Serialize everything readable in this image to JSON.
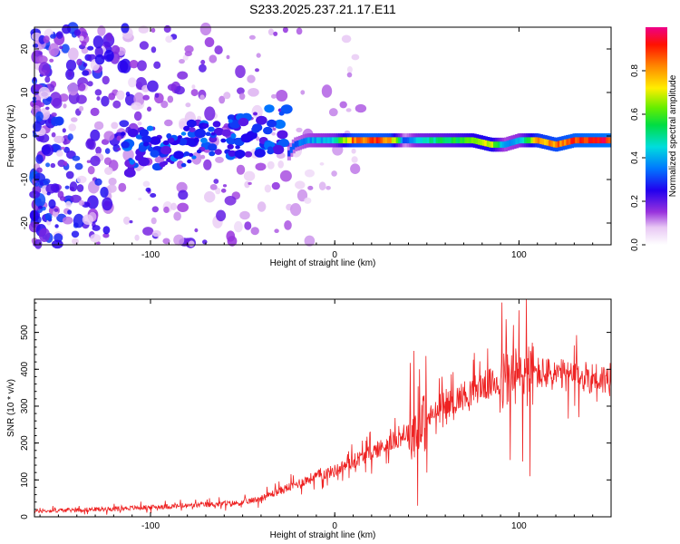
{
  "title": "S233.2025.237.21.17.E11",
  "chart_data": [
    {
      "type": "heatmap",
      "xlabel": "Height of straight line (km)",
      "ylabel": "Frequency (Hz)",
      "xlim": [
        -163,
        150
      ],
      "ylim": [
        -25,
        25
      ],
      "xticks": [
        -100,
        0,
        100
      ],
      "yticks": [
        -20,
        -10,
        0,
        10,
        20
      ],
      "colorbar": {
        "label": "Normalized spectral amplitude",
        "ticks": [
          0.0,
          0.2,
          0.4,
          0.6,
          0.8
        ],
        "range": [
          0,
          1
        ]
      },
      "ridge": [
        {
          "x": -110,
          "y": -6,
          "amp": 0.35
        },
        {
          "x": -100,
          "y": -3,
          "amp": 0.3
        },
        {
          "x": -90,
          "y": 0,
          "amp": 0.3
        },
        {
          "x": -75,
          "y": -1,
          "amp": 0.25
        },
        {
          "x": -55,
          "y": 0,
          "amp": 0.35
        },
        {
          "x": -35,
          "y": -3,
          "amp": 0.3
        },
        {
          "x": -28,
          "y": -6,
          "amp": 0.3
        },
        {
          "x": -22,
          "y": -2,
          "amp": 0.35
        },
        {
          "x": -15,
          "y": -1,
          "amp": 0.4
        },
        {
          "x": -5,
          "y": -1,
          "amp": 0.45
        },
        {
          "x": 0,
          "y": -1,
          "amp": 0.5
        },
        {
          "x": 10,
          "y": -1,
          "amp": 0.9
        },
        {
          "x": 20,
          "y": -1,
          "amp": 0.95
        },
        {
          "x": 30,
          "y": -1,
          "amp": 0.9
        },
        {
          "x": 38,
          "y": -1,
          "amp": 0.3
        },
        {
          "x": 45,
          "y": -1,
          "amp": 0.5
        },
        {
          "x": 55,
          "y": -1,
          "amp": 0.55
        },
        {
          "x": 65,
          "y": -1,
          "amp": 0.6
        },
        {
          "x": 75,
          "y": -1,
          "amp": 0.7
        },
        {
          "x": 85,
          "y": -2,
          "amp": 0.75
        },
        {
          "x": 92,
          "y": -2,
          "amp": 0.4
        },
        {
          "x": 100,
          "y": -1,
          "amp": 0.45
        },
        {
          "x": 110,
          "y": -1,
          "amp": 0.85
        },
        {
          "x": 120,
          "y": -2,
          "amp": 0.9
        },
        {
          "x": 130,
          "y": -1,
          "amp": 0.95
        },
        {
          "x": 140,
          "y": -1,
          "amp": 0.98
        },
        {
          "x": 150,
          "y": -1,
          "amp": 1.0
        }
      ]
    },
    {
      "type": "line",
      "xlabel": "Height of straight line (km)",
      "ylabel": "SNR (10 * v/v)",
      "xlim": [
        -163,
        150
      ],
      "ylim": [
        0,
        590
      ],
      "xticks": [
        -100,
        0,
        100
      ],
      "yticks": [
        0,
        100,
        200,
        300,
        400,
        500
      ],
      "series": [
        {
          "name": "SNR",
          "color": "#ee2222",
          "trend": [
            {
              "x": -163,
              "y": 15
            },
            {
              "x": -120,
              "y": 22
            },
            {
              "x": -80,
              "y": 30
            },
            {
              "x": -50,
              "y": 38
            },
            {
              "x": -40,
              "y": 50
            },
            {
              "x": -30,
              "y": 70
            },
            {
              "x": -20,
              "y": 90
            },
            {
              "x": -10,
              "y": 110
            },
            {
              "x": 0,
              "y": 125
            },
            {
              "x": 10,
              "y": 150
            },
            {
              "x": 20,
              "y": 175
            },
            {
              "x": 30,
              "y": 200
            },
            {
              "x": 40,
              "y": 230
            },
            {
              "x": 45,
              "y": 235
            },
            {
              "x": 50,
              "y": 265
            },
            {
              "x": 60,
              "y": 300
            },
            {
              "x": 70,
              "y": 330
            },
            {
              "x": 80,
              "y": 355
            },
            {
              "x": 90,
              "y": 365
            },
            {
              "x": 100,
              "y": 380
            },
            {
              "x": 110,
              "y": 390
            },
            {
              "x": 120,
              "y": 385
            },
            {
              "x": 130,
              "y": 378
            },
            {
              "x": 140,
              "y": 378
            },
            {
              "x": 150,
              "y": 370
            }
          ],
          "spikes": [
            {
              "x": 43,
              "y": 450
            },
            {
              "x": 45,
              "y": 30
            },
            {
              "x": 46,
              "y": 400
            },
            {
              "x": 50,
              "y": 120
            },
            {
              "x": 97,
              "y": 520
            },
            {
              "x": 100,
              "y": 560
            },
            {
              "x": 104,
              "y": 590
            },
            {
              "x": 106,
              "y": 110
            },
            {
              "x": 102,
              "y": 150
            }
          ]
        }
      ]
    }
  ]
}
